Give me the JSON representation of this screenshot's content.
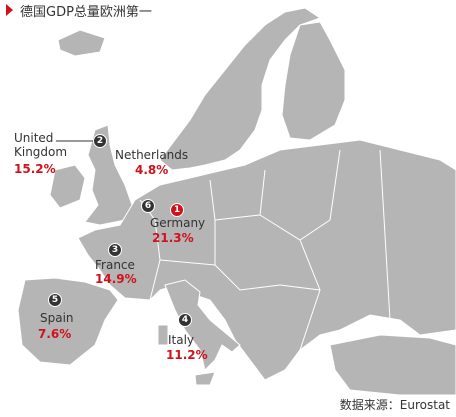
{
  "header": {
    "title": "德国GDP总量欧洲第一"
  },
  "countries": [
    {
      "rank": "1",
      "name": "Germany",
      "share": "21.3%"
    },
    {
      "rank": "2",
      "name": "United Kingdom",
      "share": "15.2%"
    },
    {
      "rank": "3",
      "name": "France",
      "share": "14.9%"
    },
    {
      "rank": "4",
      "name": "Italy",
      "share": "11.2%"
    },
    {
      "rank": "5",
      "name": "Spain",
      "share": "7.6%"
    },
    {
      "rank": "6",
      "name": "Netherlands",
      "share": "4.8%"
    }
  ],
  "footer": {
    "source": "数据来源：Eurostat"
  }
}
